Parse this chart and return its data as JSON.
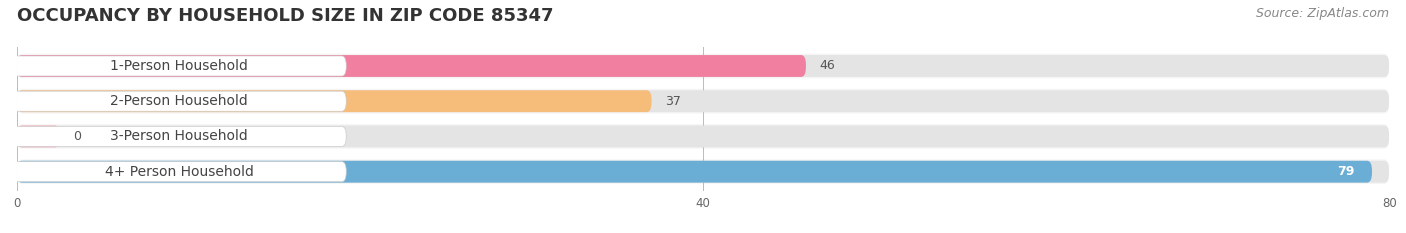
{
  "title": "OCCUPANCY BY HOUSEHOLD SIZE IN ZIP CODE 85347",
  "source": "Source: ZipAtlas.com",
  "categories": [
    "1-Person Household",
    "2-Person Household",
    "3-Person Household",
    "4+ Person Household"
  ],
  "values": [
    46,
    37,
    0,
    79
  ],
  "bar_colors": [
    "#f07fa0",
    "#f5bc7a",
    "#f0a8b0",
    "#6aaed6"
  ],
  "bar_bg_color": "#e4e4e4",
  "xlim": [
    0,
    80
  ],
  "xticks": [
    0,
    40,
    80
  ],
  "title_fontsize": 13,
  "label_fontsize": 10,
  "value_fontsize": 9,
  "source_fontsize": 9,
  "background_color": "#ffffff",
  "row_bg_color": "#f5f5f5"
}
